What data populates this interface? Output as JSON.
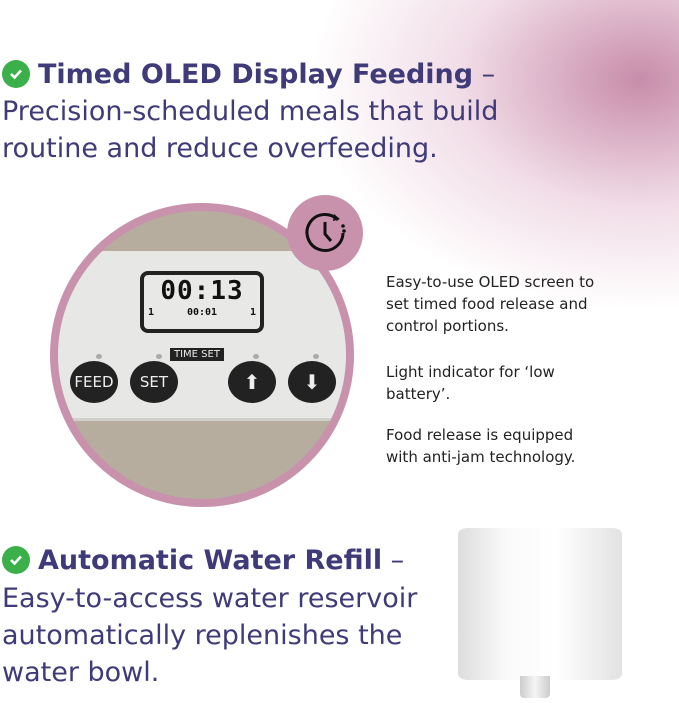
{
  "section1": {
    "title": "Timed OLED Display Feeding",
    "dash": " –",
    "line2": "Precision-scheduled meals that build",
    "line3": "routine and reduce overfeeding."
  },
  "panel": {
    "main_time": "00:13",
    "sub_left": "1",
    "sub_time": "00:01",
    "sub_right": "1",
    "time_set_label": "TIME SET",
    "feed_label": "FEED",
    "set_label": "SET",
    "up_icon": "arrow-up-icon",
    "down_icon": "arrow-down-icon"
  },
  "features": [
    {
      "line1": "Easy-to-use OLED screen to",
      "line2": "set timed food release and",
      "line3": "control portions."
    },
    {
      "line1": "Light indicator for ‘low",
      "line2": "battery’."
    },
    {
      "line1": "Food release is equipped",
      "line2": "with anti-jam technology."
    }
  ],
  "section2": {
    "title": "Automatic Water Refill",
    "dash": " –",
    "line2": "Easy-to-access water reservoir",
    "line3": "automatically replenishes the",
    "line4": "water bowl."
  },
  "colors": {
    "heading": "#3f3a78",
    "check": "#3bb04a",
    "accent_pink": "#c892ad"
  }
}
